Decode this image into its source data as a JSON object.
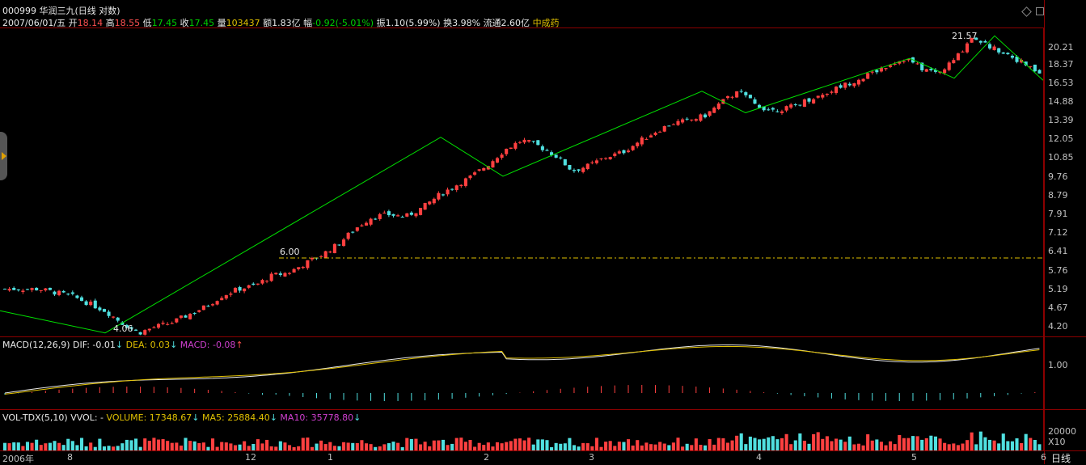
{
  "header": {
    "code_name": "000999 华润三九(日线 对数)",
    "date": "2007/06/01/五",
    "open_label": "开",
    "open_value": "18.14",
    "high_label": "高",
    "high_value": "18.55",
    "low_label": "低",
    "low_value": "17.45",
    "close_label": "收",
    "close_value": "17.45",
    "vol_label": "量",
    "vol_value": "103437",
    "amount": "额1.83亿",
    "chg_label": "幅",
    "chg_value": "-0.92(-5.01%)",
    "amp": "振1.10(5.99%)",
    "turnover": "换3.98%",
    "float": "流通2.60亿",
    "sector": "中成药"
  },
  "price_axis": [
    "20.21",
    "18.37",
    "16.53",
    "14.88",
    "13.39",
    "12.05",
    "10.85",
    "9.76",
    "8.79",
    "7.91",
    "7.12",
    "6.41",
    "5.76",
    "5.19",
    "4.67",
    "4.20"
  ],
  "annotations": {
    "high": "21.57",
    "low": "4.06",
    "level": "6.00"
  },
  "macd": {
    "label": "MACD(12,26,9)",
    "dif": "DIF: -0.01",
    "dea": "DEA: 0.03",
    "macd": "MACD: -0.08",
    "axis": "1.00"
  },
  "volume": {
    "label": "VOL-TDX(5,10)",
    "vvol": "VVOL: -",
    "vol": "VOLUME: 17348.67",
    "ma5": "MA5: 25884.40",
    "ma10": "MA10: 35778.80",
    "axis": "20000",
    "unit": "X10"
  },
  "time_axis": [
    "2006年",
    "8",
    "12",
    "1",
    "2",
    "3",
    "4",
    "5",
    "6"
  ],
  "side_tab_icon": "arrow-right-icon",
  "corner_icons": [
    "diamond-icon",
    "square-icon"
  ],
  "bottom_right_tab": "日线",
  "colors": {
    "up": "#ff4040",
    "down": "#50e0e0",
    "trend": "#00e000",
    "grid": "#8b0000"
  },
  "chart_data": {
    "type": "candlestick",
    "title": "000999 华润三九(日线 对数)",
    "y_scale": "log",
    "ylim": [
      4.0,
      22.5
    ],
    "x_ticks": [
      "2006年",
      "8",
      "12",
      "1",
      "2",
      "3",
      "4",
      "5",
      "6"
    ],
    "close_trend": [
      5.2,
      5.2,
      5.2,
      5.1,
      5.0,
      4.8,
      4.6,
      4.3,
      4.06,
      4.2,
      4.3,
      4.5,
      4.7,
      5.0,
      5.2,
      5.3,
      5.6,
      5.7,
      6.0,
      6.3,
      6.7,
      7.3,
      7.8,
      7.9,
      7.8,
      8.2,
      8.8,
      9.3,
      9.8,
      10.5,
      11.4,
      12.0,
      11.6,
      11.0,
      10.1,
      10.4,
      10.9,
      11.2,
      11.9,
      12.6,
      13.2,
      13.4,
      13.8,
      14.9,
      15.8,
      14.6,
      14.2,
      14.4,
      15.0,
      15.5,
      16.2,
      16.8,
      17.5,
      18.4,
      19.0,
      17.9,
      17.5,
      19.0,
      21.57,
      20.3,
      19.6,
      18.5,
      17.45
    ]
  }
}
